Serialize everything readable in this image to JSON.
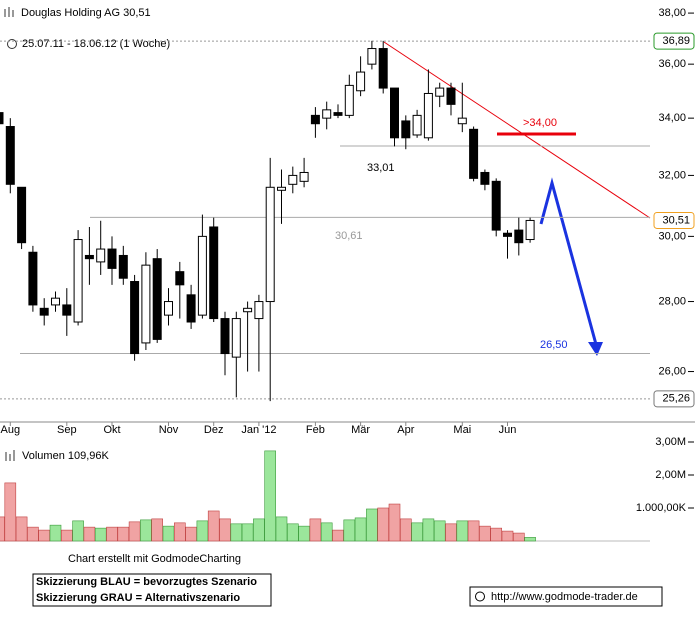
{
  "chart_data": {
    "type": "candlestick",
    "title": "Douglas Holding AG 30,51",
    "subtitle": "25.07.11 - 18.06.12 (1 Woche)",
    "log_scale": true,
    "ylim": [
      24.7,
      38.53
    ],
    "yticks": [
      {
        "value": 38,
        "label": "38,00"
      },
      {
        "value": 36,
        "label": "36,00"
      },
      {
        "value": 34,
        "label": "34,00"
      },
      {
        "value": 32,
        "label": "32,00"
      },
      {
        "value": 30,
        "label": "30,00"
      },
      {
        "value": 28,
        "label": "28,00"
      },
      {
        "value": 26,
        "label": "26,00"
      }
    ],
    "xticks": [
      {
        "value": 1,
        "label": "Aug"
      },
      {
        "value": 6,
        "label": "Sep"
      },
      {
        "value": 10,
        "label": "Okt"
      },
      {
        "value": 15,
        "label": "Nov"
      },
      {
        "value": 19,
        "label": "Dez"
      },
      {
        "value": 23,
        "label": "Jan '12"
      },
      {
        "value": 28,
        "label": "Feb"
      },
      {
        "value": 32,
        "label": "Mär"
      },
      {
        "value": 36,
        "label": "Apr"
      },
      {
        "value": 41,
        "label": "Mai"
      },
      {
        "value": 45,
        "label": "Jun"
      }
    ],
    "open": [
      34.2,
      33.7,
      31.6,
      29.5,
      27.8,
      27.9,
      27.9,
      27.4,
      29.4,
      29.2,
      29.6,
      29.4,
      28.6,
      26.8,
      29.3,
      27.6,
      28.9,
      28.2,
      27.6,
      30.3,
      27.5,
      26.4,
      27.7,
      27.5,
      28.0,
      31.5,
      31.7,
      31.8,
      34.1,
      34.0,
      34.2,
      34.1,
      35.0,
      36.0,
      36.6,
      35.1,
      33.9,
      33.4,
      33.3,
      34.8,
      35.1,
      33.8,
      33.6,
      32.1,
      31.8,
      30.1,
      30.2,
      29.9
    ],
    "high": [
      34.4,
      34.0,
      31.6,
      29.7,
      28.1,
      28.3,
      28.4,
      30.2,
      30.3,
      30.5,
      30.0,
      29.7,
      28.8,
      29.5,
      29.6,
      28.4,
      29.2,
      28.5,
      30.7,
      30.6,
      27.7,
      27.7,
      28.0,
      28.2,
      32.6,
      32.2,
      32.3,
      32.6,
      34.4,
      34.6,
      34.5,
      35.6,
      36.3,
      36.9,
      36.9,
      35.1,
      34.1,
      34.3,
      35.8,
      35.3,
      35.3,
      35.3,
      33.7,
      32.2,
      31.9,
      30.2,
      30.6,
      30.6
    ],
    "low": [
      33.6,
      31.4,
      29.6,
      27.7,
      27.3,
      27.7,
      27.0,
      27.3,
      28.5,
      28.8,
      28.5,
      28.5,
      26.3,
      26.6,
      26.8,
      27.3,
      27.5,
      27.2,
      27.5,
      27.4,
      25.9,
      25.3,
      26.0,
      26.0,
      25.2,
      30.4,
      31.4,
      31.6,
      33.3,
      33.6,
      34.0,
      34.0,
      34.8,
      35.8,
      34.9,
      33.0,
      32.9,
      33.3,
      33.2,
      34.4,
      34.1,
      33.5,
      31.8,
      31.5,
      30.0,
      29.3,
      29.4,
      29.8
    ],
    "close": [
      33.8,
      31.7,
      29.8,
      27.9,
      27.6,
      28.1,
      27.6,
      29.9,
      29.3,
      29.6,
      29.0,
      28.7,
      26.5,
      29.1,
      26.9,
      28.0,
      28.5,
      27.4,
      30.0,
      27.5,
      26.5,
      27.5,
      27.8,
      28.0,
      31.6,
      31.6,
      32.0,
      32.1,
      33.8,
      34.3,
      34.1,
      35.2,
      35.7,
      36.6,
      35.1,
      33.3,
      33.3,
      34.1,
      34.9,
      35.1,
      34.5,
      34.0,
      31.9,
      31.7,
      30.2,
      30.0,
      29.8,
      30.51
    ],
    "levels": [
      {
        "value": 33.01,
        "label": "33,01"
      },
      {
        "value": 30.61,
        "label": "30,61"
      },
      {
        "value": 26.5,
        "label": "26,50"
      }
    ],
    "markers": [
      {
        "value": 36.89,
        "label": "36,89"
      },
      {
        "value": 30.51,
        "label": "30,51"
      },
      {
        "value": 25.26,
        "label": "25,26"
      }
    ],
    "annotation": ">34,00",
    "volume_title": "Volumen 109,96K",
    "volume_ylim": [
      0,
      3.03
    ],
    "volume_yticks": [
      {
        "value": 3,
        "label": "3,00M"
      },
      {
        "value": 2,
        "label": "2,00M"
      },
      {
        "value": 1,
        "label": "1.000,00K"
      }
    ],
    "volume": [
      0.73,
      1.76,
      0.73,
      0.42,
      0.33,
      0.48,
      0.33,
      0.61,
      0.42,
      0.39,
      0.42,
      0.42,
      0.58,
      0.64,
      0.67,
      0.45,
      0.55,
      0.42,
      0.61,
      0.91,
      0.67,
      0.52,
      0.52,
      0.67,
      2.73,
      0.73,
      0.52,
      0.45,
      0.67,
      0.55,
      0.33,
      0.64,
      0.7,
      0.97,
      1.0,
      1.12,
      0.67,
      0.55,
      0.67,
      0.61,
      0.52,
      0.61,
      0.61,
      0.45,
      0.39,
      0.3,
      0.24,
      0.10996
    ],
    "credit": "Chart erstellt mit GodmodeCharting",
    "notes": [
      "Skizzierung BLAU = bevorzugtes Szenario",
      "Skizzierung GRAU = Alternativszenario"
    ],
    "url": "http://www.godmode-trader.de"
  }
}
